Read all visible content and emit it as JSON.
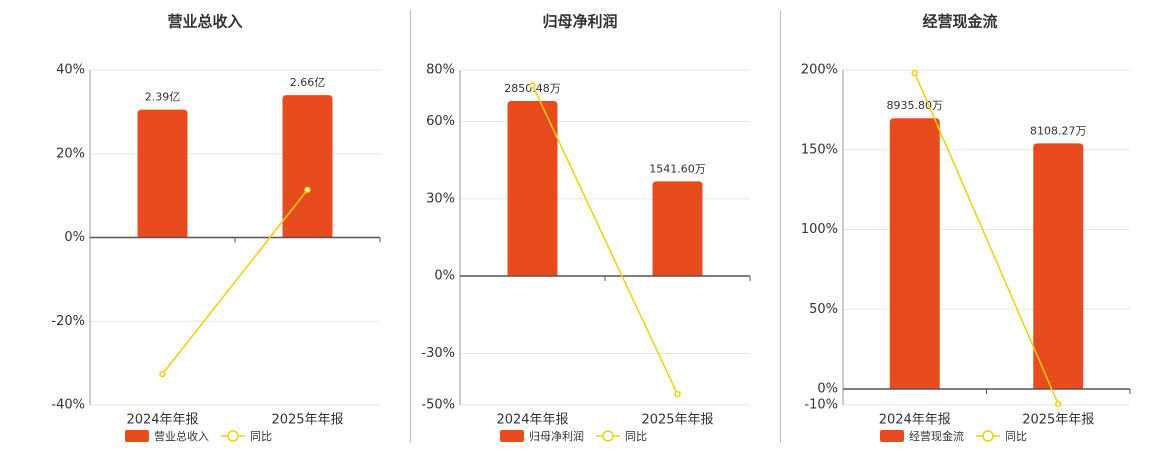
{
  "chart_data": [
    {
      "type": "bar",
      "title": "营业总收入",
      "categories": [
        "2024年年报",
        "2025年年报"
      ],
      "ylim": [
        -40,
        40
      ],
      "yticks": [
        {
          "value": -40,
          "label": "-40%"
        },
        {
          "value": -20,
          "label": "-20%"
        },
        {
          "value": 0,
          "label": "0%"
        },
        {
          "value": 20,
          "label": "20%"
        },
        {
          "value": 40,
          "label": "40%"
        }
      ],
      "y2lim": [
        -3.13,
        3.13
      ],
      "grid": true,
      "series": [
        {
          "name": "营业总收入",
          "type": "bar",
          "axis": "y2",
          "color": "#e84c1e",
          "values": [
            2.39,
            2.66
          ],
          "value_labels": [
            "2.39亿",
            "2.66亿"
          ]
        },
        {
          "name": "同比",
          "type": "line",
          "color": "#f2cf0a",
          "values": [
            -32.6,
            11.4
          ]
        }
      ]
    },
    {
      "type": "bar",
      "title": "归母净利润",
      "categories": [
        "2024年年报",
        "2025年年报"
      ],
      "ylim": [
        -50,
        80
      ],
      "yticks": [
        {
          "value": -50,
          "label": "-50%"
        },
        {
          "value": -30,
          "label": "-30%"
        },
        {
          "value": 0,
          "label": "0%"
        },
        {
          "value": 30,
          "label": "30%"
        },
        {
          "value": 60,
          "label": "60%"
        },
        {
          "value": 80,
          "label": "80%"
        }
      ],
      "y2lim": [
        -2101,
        3355
      ],
      "grid": true,
      "series": [
        {
          "name": "归母净利润",
          "type": "bar",
          "axis": "y2",
          "color": "#e84c1e",
          "values": [
            2850.48,
            1541.6
          ],
          "value_labels": [
            "2850.48万",
            "1541.60万"
          ]
        },
        {
          "name": "同比",
          "type": "line",
          "color": "#f2cf0a",
          "values": [
            74.1,
            -45.8
          ]
        }
      ]
    },
    {
      "type": "bar",
      "title": "经营现金流",
      "categories": [
        "2024年年报",
        "2025年年报"
      ],
      "ylim": [
        -10,
        200
      ],
      "yticks": [
        {
          "value": -10,
          "label": "-10%"
        },
        {
          "value": 0,
          "label": "0%"
        },
        {
          "value": 50,
          "label": "50%"
        },
        {
          "value": 100,
          "label": "100%"
        },
        {
          "value": 150,
          "label": "150%"
        },
        {
          "value": 200,
          "label": "200%"
        }
      ],
      "y2lim": [
        -528,
        10528
      ],
      "grid": true,
      "series": [
        {
          "name": "经营现金流",
          "type": "bar",
          "axis": "y2",
          "color": "#e84c1e",
          "values": [
            8935.8,
            8108.27
          ],
          "value_labels": [
            "8935.80万",
            "8108.27万"
          ]
        },
        {
          "name": "同比",
          "type": "line",
          "color": "#f2cf0a",
          "values": [
            198.1,
            -9.4
          ]
        }
      ]
    }
  ]
}
